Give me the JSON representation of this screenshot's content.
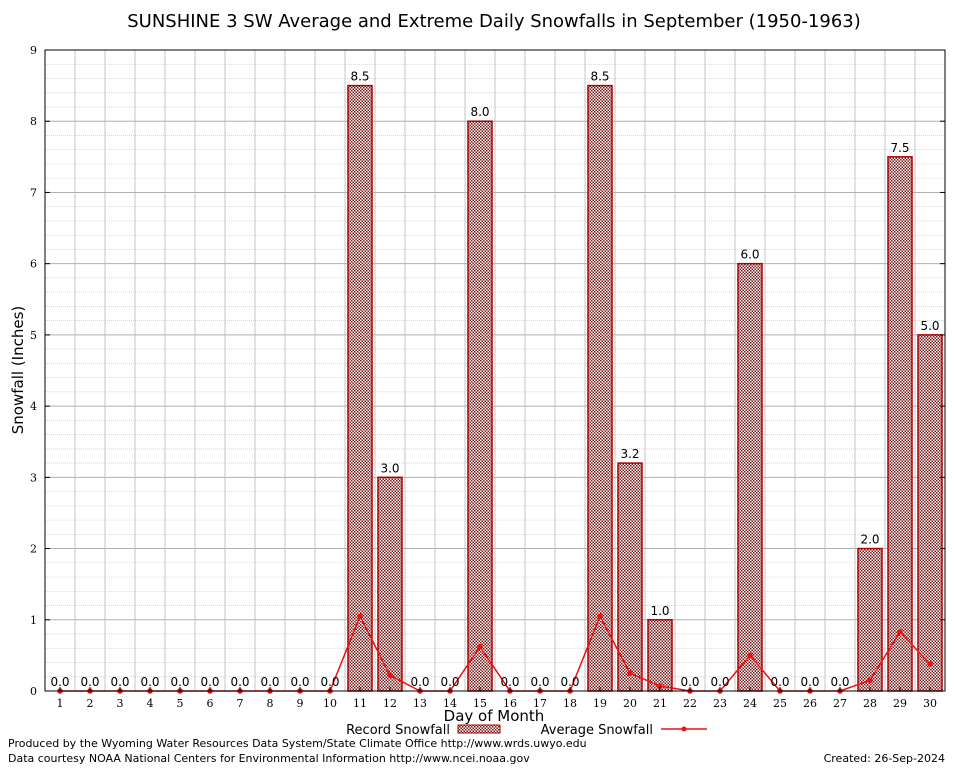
{
  "chart_data": {
    "type": "bar",
    "title": "SUNSHINE 3 SW Average and Extreme Daily Snowfalls in September (1950-1963)",
    "xlabel": "Day of Month",
    "ylabel": "Snowfall (Inches)",
    "ylim": [
      0,
      9
    ],
    "yticks": [
      "0",
      "1",
      "2",
      "3",
      "4",
      "5",
      "6",
      "7",
      "8",
      "9"
    ],
    "categories": [
      "1",
      "2",
      "3",
      "4",
      "5",
      "6",
      "7",
      "8",
      "9",
      "10",
      "11",
      "12",
      "13",
      "14",
      "15",
      "16",
      "17",
      "18",
      "19",
      "20",
      "21",
      "22",
      "23",
      "24",
      "25",
      "26",
      "27",
      "28",
      "29",
      "30"
    ],
    "grid": true,
    "legend_position": "bottom",
    "series": [
      {
        "name": "Record Snowfall",
        "kind": "bar",
        "color": "#aa0000",
        "values": [
          0,
          0,
          0,
          0,
          0,
          0,
          0,
          0,
          0,
          0,
          8.5,
          3.0,
          0,
          0,
          8.0,
          0,
          0,
          0,
          8.5,
          3.2,
          1.0,
          0,
          0,
          6.0,
          0,
          0,
          0,
          2.0,
          7.5,
          5.0
        ],
        "labels": [
          "0.0",
          "0.0",
          "0.0",
          "0.0",
          "0.0",
          "0.0",
          "0.0",
          "0.0",
          "0.0",
          "0.0",
          "8.5",
          "3.0",
          "0.0",
          "0.0",
          "8.0",
          "0.0",
          "0.0",
          "0.0",
          "8.5",
          "3.2",
          "1.0",
          "0.0",
          "0.0",
          "6.0",
          "0.0",
          "0.0",
          "0.0",
          "2.0",
          "7.5",
          "5.0"
        ]
      },
      {
        "name": "Average Snowfall",
        "kind": "line",
        "color": "#ee1111",
        "values": [
          0,
          0,
          0,
          0,
          0,
          0,
          0,
          0,
          0,
          0,
          1.05,
          0.22,
          0,
          0,
          0.62,
          0,
          0,
          0,
          1.05,
          0.25,
          0.07,
          0,
          0,
          0.5,
          0,
          0,
          0,
          0.15,
          0.83,
          0.38
        ]
      }
    ]
  },
  "footer": {
    "line1": "Produced by the Wyoming Water Resources Data System/State Climate Office http://www.wrds.uwyo.edu",
    "line2": "Data courtesy NOAA National Centers for Environmental Information http://www.ncei.noaa.gov",
    "created": "Created: 26-Sep-2024"
  }
}
